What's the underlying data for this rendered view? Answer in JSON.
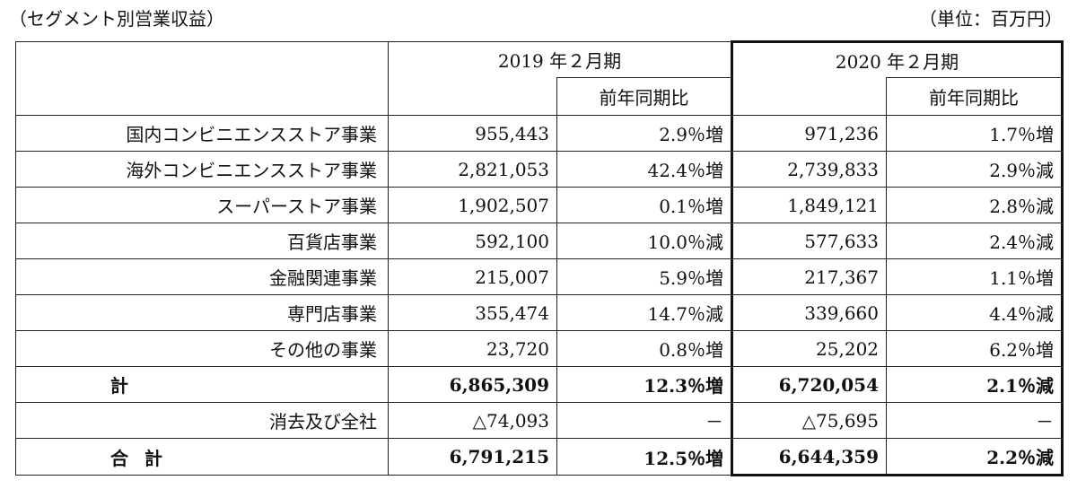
{
  "caption": {
    "title": "（セグメント別営業収益）",
    "unit": "（単位：百万円）"
  },
  "header": {
    "period_2019": "2019 年２月期",
    "period_2020": "2020 年２月期",
    "yoy_2019": "前年同期比",
    "yoy_2020": "前年同期比"
  },
  "rows": [
    {
      "segment": "国内コンビニエンスストア事業",
      "v2019": "955,443",
      "yoy2019": "2.9％増",
      "v2020": "971,236",
      "yoy2020": "1.7％増"
    },
    {
      "segment": "海外コンビニエンスストア事業",
      "v2019": "2,821,053",
      "yoy2019": "42.4％増",
      "v2020": "2,739,833",
      "yoy2020": "2.9％減"
    },
    {
      "segment": "スーパーストア事業",
      "v2019": "1,902,507",
      "yoy2019": "0.1％増",
      "v2020": "1,849,121",
      "yoy2020": "2.8％減"
    },
    {
      "segment": "百貨店事業",
      "v2019": "592,100",
      "yoy2019": "10.0％減",
      "v2020": "577,633",
      "yoy2020": "2.4％減"
    },
    {
      "segment": "金融関連事業",
      "v2019": "215,007",
      "yoy2019": "5.9％増",
      "v2020": "217,367",
      "yoy2020": "1.1％増"
    },
    {
      "segment": "専門店事業",
      "v2019": "355,474",
      "yoy2019": "14.7％減",
      "v2020": "339,660",
      "yoy2020": "4.4％減"
    },
    {
      "segment": "その他の事業",
      "v2019": "23,720",
      "yoy2019": "0.8％増",
      "v2020": "25,202",
      "yoy2020": "6.2％増"
    }
  ],
  "subtotal": {
    "segment": "計",
    "v2019": "6,865,309",
    "yoy2019": "12.3％増",
    "v2020": "6,720,054",
    "yoy2020": "2.1％減"
  },
  "elimination": {
    "segment": "消去及び全社",
    "v2019": "△74,093",
    "yoy2019": "－",
    "v2020": "△75,695",
    "yoy2020": "－"
  },
  "grand_total": {
    "segment": "合計",
    "v2019": "6,791,215",
    "yoy2019": "12.5％増",
    "v2020": "6,644,359",
    "yoy2020": "2.2％減"
  }
}
